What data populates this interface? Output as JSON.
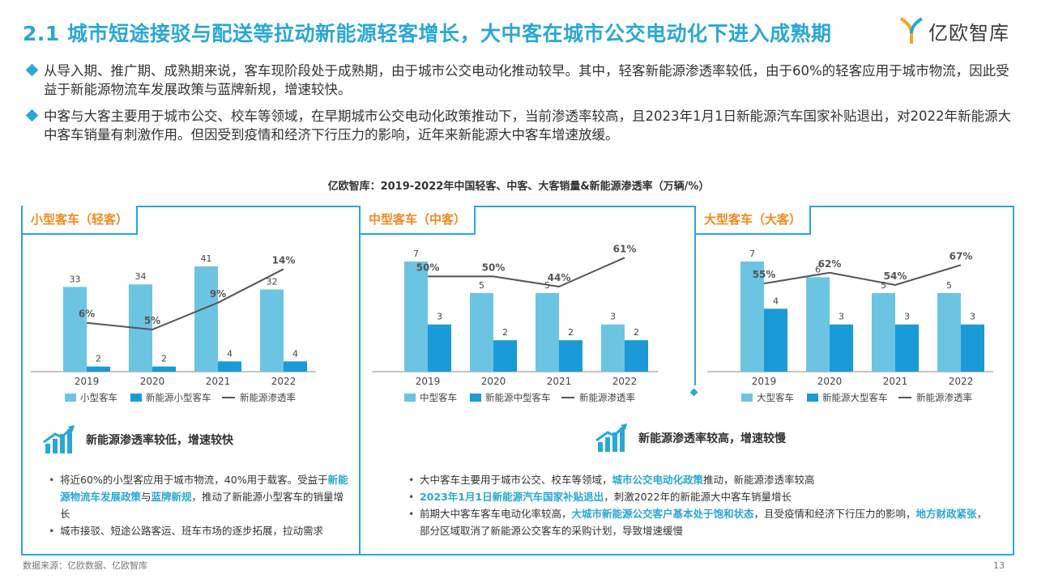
{
  "title": "2.1 城市短途接驳与配送等拉动新能源轻客增长，大中客在城市公交电动化下进入成熟期",
  "logo": {
    "text": "亿欧智库"
  },
  "bullets": [
    "从导入期、推广期、成熟期来说，客车现阶段处于成熟期，由于城市公交电动化推动较早。其中，轻客新能源渗透率较低，由于60%的轻客应用于城市物流，因此受益于新能源物流车发展政策与蓝牌新规，增速较快。",
    "中客与大客主要用于城市公交、校车等领域，在早期城市公交电动化政策推动下，当前渗透率较高，且2023年1月1日新能源汽车国家补贴退出，对2022年新能源大中客车销量有刺激作用。但因受到疫情和经济下行压力的影响，近年来新能源大中客车增速放缓。"
  ],
  "chart_heading": "亿欧智库：2019-2022年中国轻客、中客、大客销量&新能源渗透率（万辆/%）",
  "colors": {
    "accent": "#2aa7d6",
    "orange": "#f08a1c",
    "bar_total": "#6cc4e3",
    "bar_nev": "#1a9ad6",
    "line": "#555555"
  },
  "chart_data": [
    {
      "type": "bar",
      "panel_title": "小型客车（轻客）",
      "categories": [
        "2019",
        "2020",
        "2021",
        "2022"
      ],
      "series": [
        {
          "name": "小型客车",
          "kind": "bar",
          "values": [
            33,
            34,
            41,
            32
          ]
        },
        {
          "name": "新能源小型客车",
          "kind": "bar",
          "values": [
            2,
            2,
            4,
            4
          ]
        },
        {
          "name": "新能源渗透率",
          "kind": "line",
          "values": [
            6,
            5,
            9,
            14
          ],
          "labels": [
            "6%",
            "5%",
            "9%",
            "14%"
          ]
        }
      ]
    },
    {
      "type": "bar",
      "panel_title": "中型客车（中客）",
      "categories": [
        "2019",
        "2020",
        "2021",
        "2022"
      ],
      "series": [
        {
          "name": "中型客车",
          "kind": "bar",
          "values": [
            7,
            5,
            5,
            3
          ]
        },
        {
          "name": "新能源中型客车",
          "kind": "bar",
          "values": [
            3,
            2,
            2,
            2
          ]
        },
        {
          "name": "新能源渗透率",
          "kind": "line",
          "values": [
            50,
            50,
            44,
            61
          ],
          "labels": [
            "50%",
            "50%",
            "44%",
            "61%"
          ]
        }
      ]
    },
    {
      "type": "bar",
      "panel_title": "大型客车（大客）",
      "categories": [
        "2019",
        "2020",
        "2021",
        "2022"
      ],
      "series": [
        {
          "name": "大型客车",
          "kind": "bar",
          "values": [
            7,
            6,
            5,
            5
          ]
        },
        {
          "name": "新能源大型客车",
          "kind": "bar",
          "values": [
            4,
            3,
            3,
            3
          ]
        },
        {
          "name": "新能源渗透率",
          "kind": "line",
          "values": [
            55,
            62,
            54,
            67
          ],
          "labels": [
            "55%",
            "62%",
            "54%",
            "67%"
          ]
        }
      ]
    }
  ],
  "left_summary": {
    "heading": "新能源渗透率较低，增速较快",
    "note1": {
      "a": "将近60%的小型客应用于城市物流，40%用于载客。受益于",
      "h1": "新能源物流车发展政策",
      "b": "与",
      "h2": "蓝牌新规",
      "c": "，推动了新能源小型客车的销量增长"
    },
    "note2": "城市接驳、短途公路客运、班车市场的逐步拓展，拉动需求"
  },
  "right_summary": {
    "heading": "新能源渗透率较高，增速较慢",
    "note1": {
      "a": "大中客车主要用于城市公交、校车等领域，",
      "h1": "城市公交电动化政策",
      "b": "推动，新能源渗透率较高"
    },
    "note2": {
      "h1": "2023年1月1日新能源汽车国家补贴退出",
      "b": "，刺激2022年的新能源大中客车销量增长"
    },
    "note3": {
      "a": "前期大中客车客车电动化率较高，",
      "h1": "大城市新能源公交客户基本处于饱和状态",
      "b": "，且受疫情和经济下行压力的影响，",
      "h2": "地方财政紧张",
      "c": "，部分区域取消了新能源公交客车的采购计划，导致增速缓慢"
    }
  },
  "source": "数据来源：亿欧数据、亿欧智库",
  "page_number": "13"
}
